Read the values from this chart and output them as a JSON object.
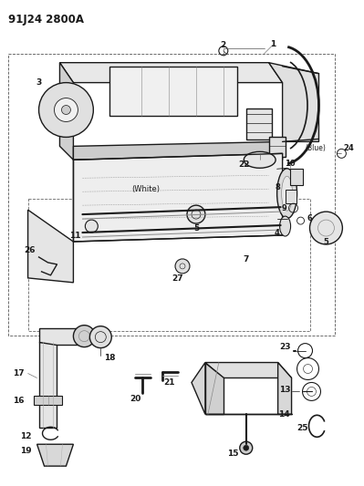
{
  "title": "91J24 2800A",
  "bg_color": "#ffffff",
  "lc": "#1a1a1a",
  "figsize": [
    3.99,
    5.33
  ],
  "dpi": 100
}
